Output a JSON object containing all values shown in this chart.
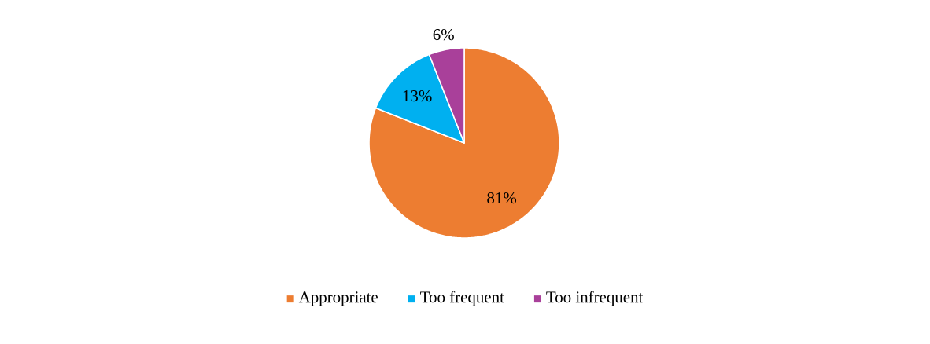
{
  "chart_data": {
    "type": "pie",
    "categories": [
      "Appropriate",
      "Too frequent",
      "Too infrequent"
    ],
    "values": [
      81,
      13,
      6
    ],
    "colors": [
      "#ed7d31",
      "#00b0f0",
      "#a9409a"
    ],
    "value_labels": [
      "81%",
      "13%",
      "6%"
    ],
    "legend": "bottom"
  }
}
